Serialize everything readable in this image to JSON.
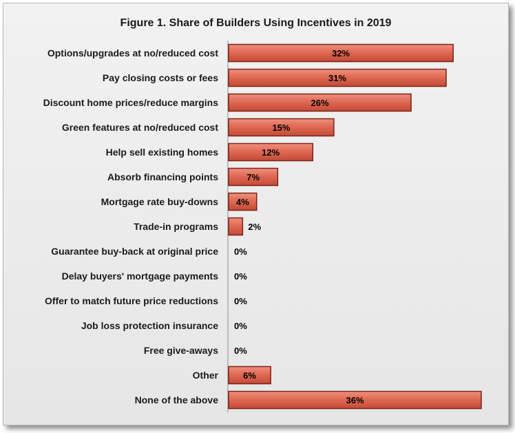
{
  "chart_data": {
    "type": "bar",
    "orientation": "horizontal",
    "title": "Figure 1. Share of Builders Using Incentives in 2019",
    "xlabel": "",
    "ylabel": "",
    "categories": [
      "Options/upgrades at no/reduced cost",
      "Pay closing costs or fees",
      "Discount home prices/reduce margins",
      "Green features at no/reduced cost",
      "Help sell existing homes",
      "Absorb financing points",
      "Mortgage rate buy-downs",
      "Trade-in programs",
      "Guarantee buy-back at original price",
      "Delay buyers' mortgage payments",
      "Offer to match future price reductions",
      "Job loss protection insurance",
      "Free give-aways",
      "Other",
      "None of the above"
    ],
    "values": [
      32,
      31,
      26,
      15,
      12,
      7,
      4,
      2,
      0,
      0,
      0,
      0,
      0,
      6,
      36
    ],
    "value_labels": [
      "32%",
      "31%",
      "26%",
      "15%",
      "12%",
      "7%",
      "4%",
      "2%",
      "0%",
      "0%",
      "0%",
      "0%",
      "0%",
      "6%",
      "36%"
    ],
    "xlim": [
      0,
      36
    ],
    "grid": false,
    "legend": "none",
    "bar_color": "#e06a55",
    "bar_edge_color": "#7a2418"
  }
}
